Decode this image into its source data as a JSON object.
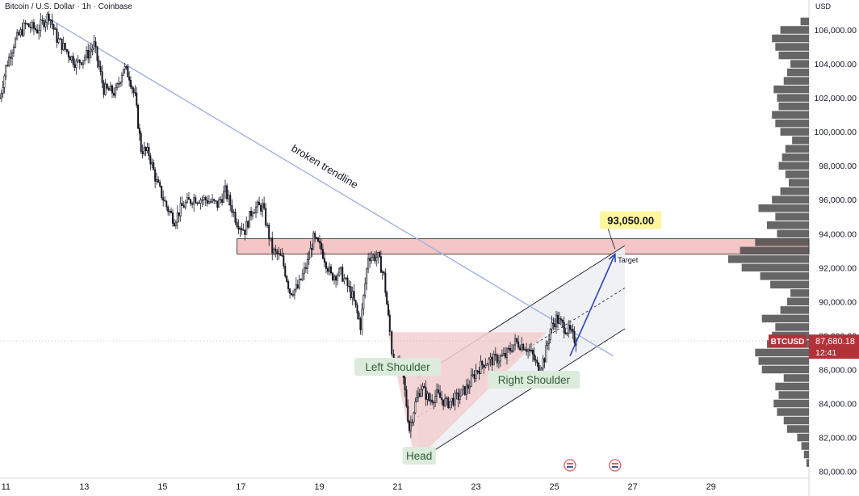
{
  "header": {
    "title": "Bitcoin / U.S. Dollar · 1h · Coinbase"
  },
  "chart_data": {
    "type": "candlestick",
    "symbol": "BTCUSD",
    "currency": "USD",
    "y_axis": {
      "ticks": [
        80000,
        82000,
        84000,
        86000,
        88000,
        90000,
        92000,
        94000,
        96000,
        98000,
        100000,
        102000,
        104000,
        106000
      ],
      "tick_labels": [
        "80,000.00",
        "82,000.00",
        "84,000.00",
        "86,000.00",
        "88,000.00",
        "90,000.00",
        "92,000.00",
        "94,000.00",
        "96,000.00",
        "98,000.00",
        "100,000.00",
        "102,000.00",
        "104,000.00",
        "106,000.00"
      ],
      "ylim": [
        79600,
        107000
      ]
    },
    "x_axis": {
      "ticks": [
        11,
        13,
        15,
        17,
        19,
        21,
        23,
        25,
        27,
        29
      ],
      "tick_labels": [
        "11",
        "13",
        "15",
        "17",
        "19",
        "21",
        "23",
        "25",
        "27",
        "29"
      ],
      "xlim": [
        10.85,
        31.5
      ]
    },
    "price_path": [
      [
        10.85,
        102000
      ],
      [
        11.0,
        103800
      ],
      [
        11.2,
        105200
      ],
      [
        11.5,
        106300
      ],
      [
        11.8,
        106000
      ],
      [
        12.1,
        106900
      ],
      [
        12.3,
        105500
      ],
      [
        12.6,
        104600
      ],
      [
        12.8,
        104000
      ],
      [
        13.1,
        104600
      ],
      [
        13.25,
        105100
      ],
      [
        13.5,
        102500
      ],
      [
        13.8,
        102300
      ],
      [
        14.0,
        103800
      ],
      [
        14.15,
        103300
      ],
      [
        14.3,
        102000
      ],
      [
        14.45,
        99000
      ],
      [
        14.65,
        98700
      ],
      [
        14.85,
        97000
      ],
      [
        15.1,
        95600
      ],
      [
        15.3,
        94800
      ],
      [
        15.5,
        95600
      ],
      [
        15.8,
        96100
      ],
      [
        16.1,
        96000
      ],
      [
        16.4,
        95700
      ],
      [
        16.6,
        96500
      ],
      [
        16.9,
        94700
      ],
      [
        17.1,
        94200
      ],
      [
        17.3,
        95500
      ],
      [
        17.55,
        95600
      ],
      [
        17.8,
        93000
      ],
      [
        18.05,
        92500
      ],
      [
        18.25,
        90600
      ],
      [
        18.45,
        90800
      ],
      [
        18.7,
        92300
      ],
      [
        18.85,
        93700
      ],
      [
        19.05,
        93100
      ],
      [
        19.3,
        91500
      ],
      [
        19.55,
        91700
      ],
      [
        19.85,
        90300
      ],
      [
        20.05,
        88600
      ],
      [
        20.25,
        92700
      ],
      [
        20.5,
        92600
      ],
      [
        20.65,
        91500
      ],
      [
        20.8,
        88200
      ],
      [
        20.9,
        86000
      ],
      [
        21.05,
        86300
      ],
      [
        21.15,
        85400
      ],
      [
        21.3,
        82500
      ],
      [
        21.45,
        84000
      ],
      [
        21.6,
        85000
      ],
      [
        21.8,
        84200
      ],
      [
        22.0,
        84500
      ],
      [
        22.25,
        84000
      ],
      [
        22.55,
        84400
      ],
      [
        22.8,
        85000
      ],
      [
        23.0,
        85900
      ],
      [
        23.2,
        86400
      ],
      [
        23.5,
        86600
      ],
      [
        23.75,
        86800
      ],
      [
        24.0,
        87600
      ],
      [
        24.25,
        87400
      ],
      [
        24.45,
        86800
      ],
      [
        24.6,
        86000
      ],
      [
        24.75,
        86700
      ],
      [
        24.9,
        88400
      ],
      [
        25.05,
        89000
      ],
      [
        25.25,
        88500
      ],
      [
        25.4,
        88200
      ],
      [
        25.55,
        87680
      ]
    ],
    "volume_profile": {
      "bins": [
        80500,
        81000,
        81500,
        82000,
        82500,
        83000,
        83500,
        84000,
        84500,
        85000,
        85500,
        86000,
        86500,
        87000,
        87500,
        88000,
        88500,
        89000,
        89500,
        90000,
        90500,
        91000,
        91500,
        92000,
        92500,
        93000,
        93500,
        94000,
        94500,
        95000,
        95500,
        96000,
        96500,
        97000,
        97500,
        98000,
        98500,
        99000,
        99500,
        100000,
        100500,
        101000,
        101500,
        102000,
        102500,
        103000,
        103500,
        104000,
        104500,
        105000,
        105500,
        106000,
        106500
      ],
      "volumes": [
        3,
        6,
        9,
        14,
        26,
        30,
        38,
        42,
        36,
        40,
        30,
        56,
        60,
        64,
        50,
        44,
        40,
        56,
        34,
        26,
        22,
        46,
        58,
        80,
        96,
        82,
        64,
        38,
        50,
        40,
        60,
        44,
        34,
        24,
        28,
        36,
        32,
        28,
        20,
        34,
        40,
        44,
        36,
        38,
        42,
        30,
        26,
        22,
        36,
        40,
        44,
        34,
        10
      ]
    },
    "resistance_zone": {
      "low": 92800,
      "high": 93700,
      "from_x": 16.9,
      "to_x": 31.5
    },
    "trendline": {
      "label": "broken trendline",
      "points": [
        [
          12.0,
          106800
        ],
        [
          26.5,
          86800
        ]
      ]
    },
    "channel": {
      "lower": [
        [
          21.5,
          80600
        ],
        [
          26.8,
          88400
        ]
      ],
      "upper": [
        [
          21.5,
          85500
        ],
        [
          26.8,
          93300
        ]
      ],
      "mid": [
        [
          21.5,
          83200
        ],
        [
          26.8,
          90800
        ]
      ]
    },
    "forecast_arrow": [
      [
        25.4,
        86800
      ],
      [
        26.55,
        92800
      ]
    ],
    "target": {
      "value_label": "93,050.00",
      "label": "Target",
      "value": 93050
    },
    "pattern": {
      "left_shoulder": "Left Shoulder",
      "head": "Head",
      "right_shoulder": "Right Shoulder",
      "neckline_top": 88200,
      "triangle": [
        [
          20.75,
          88200
        ],
        [
          24.8,
          88200
        ],
        [
          21.45,
          80600
        ]
      ]
    },
    "last_price": {
      "symbol": "BTCUSD",
      "price_label": "87,680.18",
      "countdown": "12:41",
      "value": 87680.18
    },
    "colors": {
      "up": "#089981",
      "down": "#f23645",
      "candles": "#131722",
      "trendline": "#9fb3df",
      "zone_fill": "#f5c6c6",
      "triangle_fill": "#f3cfcf",
      "channel_fill": "#eef0f3",
      "arrow": "#2b45b0",
      "target_bg": "#fff59d",
      "label_bg": "#dcebdc",
      "label_text": "#2e5e34",
      "volume": "#444444",
      "last_price_bg": "#b2323a"
    }
  }
}
